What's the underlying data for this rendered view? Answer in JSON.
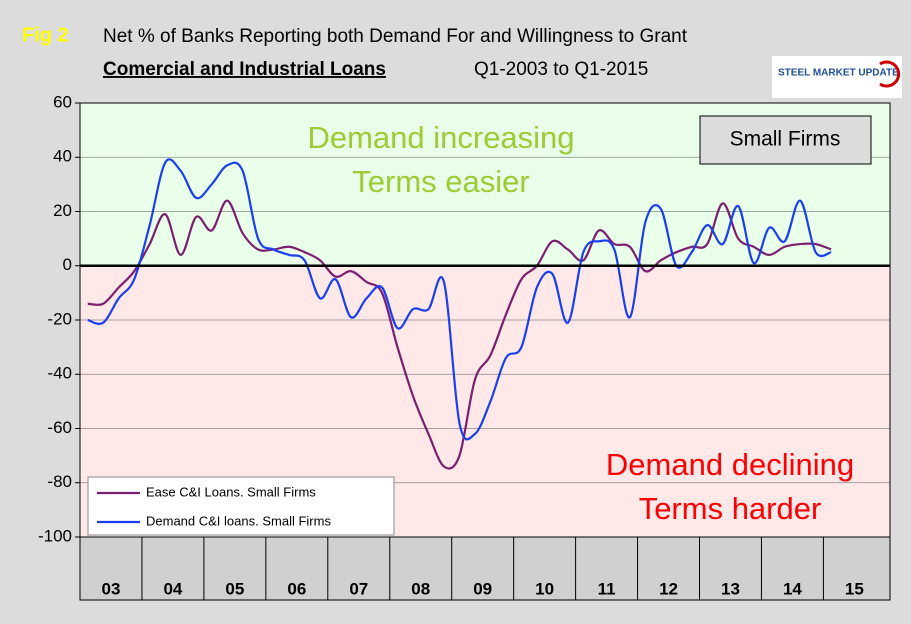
{
  "chart_data": {
    "type": "line",
    "fig_label": "Fig 2",
    "title": "Net % of Banks Reporting both Demand For and Willingness to Grant",
    "subtitle_bold": "Comercial and Industrial Loans",
    "subtitle_rest": "Q1-2003 to Q1-2015",
    "logo": "STEEL MARKET UPDATE",
    "label_box": "Small Firms",
    "annotations": [
      {
        "text": "Demand increasing",
        "color": "#9acd32"
      },
      {
        "text": "Terms easier",
        "color": "#9acd32"
      },
      {
        "text": "Demand declining",
        "color": "#ff0000"
      },
      {
        "text": "Terms harder",
        "color": "#ff0000"
      }
    ],
    "xlabels": [
      "03",
      "04",
      "05",
      "06",
      "07",
      "08",
      "09",
      "10",
      "11",
      "12",
      "13",
      "14",
      "15"
    ],
    "ylim": [
      -100,
      60
    ],
    "yticks": [
      -100,
      -80,
      -60,
      -40,
      -20,
      0,
      20,
      40,
      60
    ],
    "series": [
      {
        "name": "Ease C&I Loans. Small Firms",
        "color": "#7b1f70",
        "values": [
          -14,
          -14,
          -8,
          -2,
          8,
          19,
          4,
          18,
          13,
          24,
          12,
          6,
          6,
          7,
          5,
          2,
          -4,
          -2,
          -6,
          -10,
          -30,
          -48,
          -62,
          -74,
          -70,
          -42,
          -33,
          -18,
          -5,
          0,
          9,
          6,
          2,
          13,
          8,
          7,
          -2,
          2,
          5,
          7,
          8,
          23,
          10,
          7,
          4,
          7,
          8,
          8,
          6
        ]
      },
      {
        "name": "Demand C&I loans. Small Firms",
        "color": "#1a3ff0",
        "values": [
          -20,
          -21,
          -12,
          -5,
          15,
          38,
          35,
          25,
          30,
          37,
          35,
          10,
          6,
          4,
          2,
          -12,
          -5,
          -19,
          -12,
          -8,
          -23,
          -16,
          -16,
          -6,
          -58,
          -62,
          -50,
          -34,
          -30,
          -8,
          -3,
          -21,
          5,
          9,
          6,
          -19,
          16,
          21,
          0,
          5,
          15,
          8,
          22,
          1,
          14,
          9,
          24,
          5,
          5
        ]
      }
    ]
  }
}
